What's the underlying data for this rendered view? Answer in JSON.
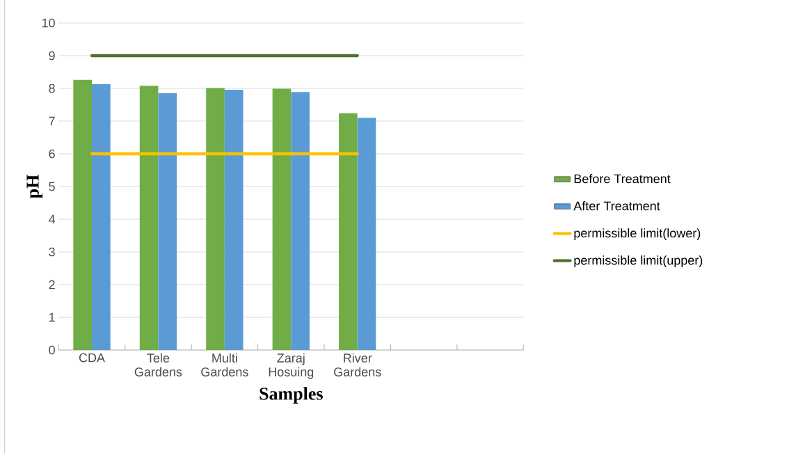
{
  "chart_data": {
    "type": "bar",
    "xlabel": "Samples",
    "ylabel": "pH",
    "categories": [
      "CDA",
      "Tele Gardens",
      "Multi Gardens",
      "Zaraj Hosuing",
      "River Gardens",
      null,
      null
    ],
    "series": [
      {
        "name": "Before Treatment",
        "color": "#70ad47",
        "values": [
          8.26,
          8.08,
          8.01,
          7.99,
          7.24,
          null,
          null
        ]
      },
      {
        "name": "After Treatment",
        "color": "#5b9bd5",
        "values": [
          8.13,
          7.85,
          7.96,
          7.89,
          7.1,
          null,
          null
        ]
      },
      {
        "name": "permissible limit(lower)",
        "type": "line",
        "color": "#ffc000",
        "values": [
          6,
          6,
          6,
          6,
          6,
          null,
          null
        ]
      },
      {
        "name": "permissible limit(upper)",
        "type": "line",
        "color": "#4e7330",
        "values": [
          9,
          9,
          9,
          9,
          9,
          null,
          null
        ]
      }
    ],
    "ylim": [
      0,
      10
    ],
    "yticks": [
      0,
      1,
      2,
      3,
      4,
      5,
      6,
      7,
      8,
      9,
      10
    ],
    "grid": "y",
    "legend": "right"
  }
}
